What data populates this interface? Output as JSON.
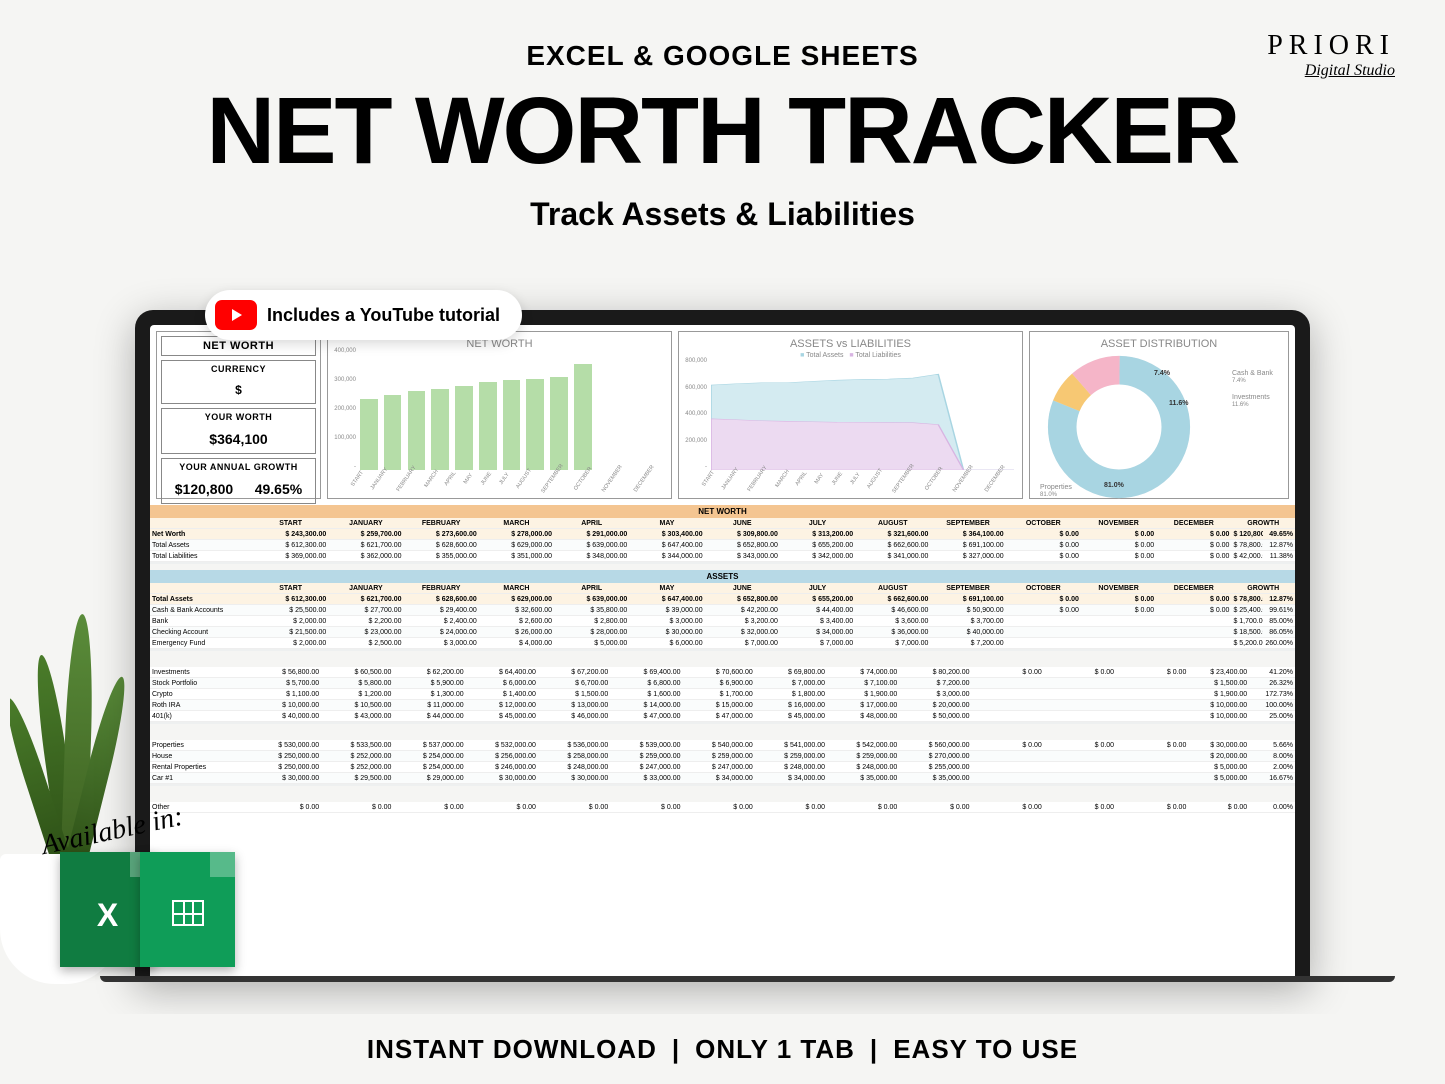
{
  "brand": {
    "name": "PRIORI",
    "sub": "Digital Studio"
  },
  "headings": {
    "sub1": "EXCEL & GOOGLE SHEETS",
    "main": "NET WORTH TRACKER",
    "sub2": "Track Assets & Liabilities"
  },
  "yt_pill": "Includes a YouTube tutorial",
  "avail_label": "Available in:",
  "bottom": [
    "INSTANT DOWNLOAD",
    "ONLY 1 TAB",
    "EASY TO USE"
  ],
  "months": [
    "START",
    "JANUARY",
    "FEBRUARY",
    "MARCH",
    "APRIL",
    "MAY",
    "JUNE",
    "JULY",
    "AUGUST",
    "SEPTEMBER",
    "OCTOBER",
    "NOVEMBER",
    "DECEMBER"
  ],
  "months_short": [
    "START",
    "JANUARY",
    "FEBRUARY",
    "MARCH",
    "APRIL",
    "MAY",
    "JUNE",
    "JULY",
    "AUGUST",
    "SEPTEMBER",
    "OCTOBER",
    "NOVEMBER",
    "DECEMBER"
  ],
  "kpi": {
    "panel_title": "NET WORTH",
    "currency_label": "CURRENCY",
    "currency": "$",
    "worth_label": "YOUR WORTH",
    "worth": "$364,100",
    "growth_label": "YOUR ANNUAL GROWTH",
    "growth_val": "$120,800",
    "growth_pct": "49.65%"
  },
  "chart_networth": {
    "title": "NET WORTH",
    "ylim": [
      0,
      400000
    ],
    "yticks": [
      "400,000",
      "300,000",
      "200,000",
      "100,000",
      "-"
    ],
    "bar_color": "#b5dda8",
    "values": [
      243300,
      259700,
      273600,
      278000,
      291000,
      303400,
      309800,
      313200,
      321600,
      364100,
      0,
      0,
      0
    ]
  },
  "chart_al": {
    "title": "ASSETS vs LIABILITIES",
    "legend": [
      "Total Assets",
      "Total Liabilities"
    ],
    "ylim": [
      0,
      800000
    ],
    "yticks": [
      "800,000",
      "600,000",
      "400,000",
      "200,000",
      "-"
    ],
    "assets_color": "#a8d5e2",
    "assets_fill": "#d4ebf1",
    "liab_color": "#d8b4e2",
    "liab_fill": "#ecdaf1",
    "assets": [
      612300,
      621700,
      628600,
      629000,
      639000,
      647400,
      652800,
      655200,
      662600,
      691100,
      0,
      0,
      0
    ],
    "liabilities": [
      369000,
      362000,
      355000,
      351000,
      348000,
      344000,
      343000,
      342000,
      341000,
      327000,
      0,
      0,
      0
    ]
  },
  "chart_donut": {
    "title": "ASSET DISTRIBUTION",
    "parts": [
      {
        "name": "Properties",
        "value": 81.0,
        "color": "#a8d5e2"
      },
      {
        "name": "Cash & Bank",
        "value": 7.4,
        "color": "#f7c873"
      },
      {
        "name": "Investments",
        "value": 11.6,
        "color": "#f5b5c8"
      }
    ]
  },
  "tables": {
    "networth": {
      "title": "NET WORTH",
      "rows": [
        {
          "label": "Net Worth",
          "vals": [
            "243,300.00",
            "259,700.00",
            "273,600.00",
            "278,000.00",
            "291,000.00",
            "303,400.00",
            "309,800.00",
            "313,200.00",
            "321,600.00",
            "364,100.00",
            "0.00",
            "0.00",
            "0.00"
          ],
          "growth": "120,800.00",
          "pct": "49.65%",
          "hl": true
        },
        {
          "label": "Total Assets",
          "vals": [
            "612,300.00",
            "621,700.00",
            "628,600.00",
            "629,000.00",
            "639,000.00",
            "647,400.00",
            "652,800.00",
            "655,200.00",
            "662,600.00",
            "691,100.00",
            "0.00",
            "0.00",
            "0.00"
          ],
          "growth": "78,800.00",
          "pct": "12.87%"
        },
        {
          "label": "Total Liabilities",
          "vals": [
            "369,000.00",
            "362,000.00",
            "355,000.00",
            "351,000.00",
            "348,000.00",
            "344,000.00",
            "343,000.00",
            "342,000.00",
            "341,000.00",
            "327,000.00",
            "0.00",
            "0.00",
            "0.00"
          ],
          "growth": "42,000.00",
          "pct": "11.38%"
        }
      ]
    },
    "assets": {
      "title": "ASSETS",
      "rows": [
        {
          "label": "Total Assets",
          "vals": [
            "612,300.00",
            "621,700.00",
            "628,600.00",
            "629,000.00",
            "639,000.00",
            "647,400.00",
            "652,800.00",
            "655,200.00",
            "662,600.00",
            "691,100.00",
            "0.00",
            "0.00",
            "0.00"
          ],
          "growth": "78,800.00",
          "pct": "12.87%",
          "hl": true
        },
        {
          "label": "Cash & Bank Accounts",
          "vals": [
            "25,500.00",
            "27,700.00",
            "29,400.00",
            "32,600.00",
            "35,800.00",
            "39,000.00",
            "42,200.00",
            "44,400.00",
            "46,600.00",
            "50,900.00",
            "0.00",
            "0.00",
            "0.00"
          ],
          "growth": "25,400.00",
          "pct": "99.61%"
        },
        {
          "label": "Bank",
          "vals": [
            "2,000.00",
            "2,200.00",
            "2,400.00",
            "2,600.00",
            "2,800.00",
            "3,000.00",
            "3,200.00",
            "3,400.00",
            "3,600.00",
            "3,700.00",
            "",
            "",
            ""
          ],
          "growth": "1,700.00",
          "pct": "85.00%"
        },
        {
          "label": "Checking Account",
          "vals": [
            "21,500.00",
            "23,000.00",
            "24,000.00",
            "26,000.00",
            "28,000.00",
            "30,000.00",
            "32,000.00",
            "34,000.00",
            "36,000.00",
            "40,000.00",
            "",
            "",
            ""
          ],
          "growth": "18,500.00",
          "pct": "86.05%"
        },
        {
          "label": "Emergency Fund",
          "vals": [
            "2,000.00",
            "2,500.00",
            "3,000.00",
            "4,000.00",
            "5,000.00",
            "6,000.00",
            "7,000.00",
            "7,000.00",
            "7,000.00",
            "7,200.00",
            "",
            "",
            ""
          ],
          "growth": "5,200.00",
          "pct": "260.00%"
        }
      ],
      "rows2": [
        {
          "label": "Investments",
          "vals": [
            "56,800.00",
            "60,500.00",
            "62,200.00",
            "64,400.00",
            "67,200.00",
            "69,400.00",
            "70,600.00",
            "69,800.00",
            "74,000.00",
            "80,200.00",
            "0.00",
            "0.00",
            "0.00"
          ],
          "growth": "23,400.00",
          "pct": "41.20%"
        },
        {
          "label": "Stock Portfolio",
          "vals": [
            "5,700.00",
            "5,800.00",
            "5,900.00",
            "6,000.00",
            "6,700.00",
            "6,800.00",
            "6,900.00",
            "7,000.00",
            "7,100.00",
            "7,200.00",
            "",
            "",
            ""
          ],
          "growth": "1,500.00",
          "pct": "26.32%"
        },
        {
          "label": "Crypto",
          "vals": [
            "1,100.00",
            "1,200.00",
            "1,300.00",
            "1,400.00",
            "1,500.00",
            "1,600.00",
            "1,700.00",
            "1,800.00",
            "1,900.00",
            "3,000.00",
            "",
            "",
            ""
          ],
          "growth": "1,900.00",
          "pct": "172.73%"
        },
        {
          "label": "Roth IRA",
          "vals": [
            "10,000.00",
            "10,500.00",
            "11,000.00",
            "12,000.00",
            "13,000.00",
            "14,000.00",
            "15,000.00",
            "16,000.00",
            "17,000.00",
            "20,000.00",
            "",
            "",
            ""
          ],
          "growth": "10,000.00",
          "pct": "100.00%"
        },
        {
          "label": "401(k)",
          "vals": [
            "40,000.00",
            "43,000.00",
            "44,000.00",
            "45,000.00",
            "46,000.00",
            "47,000.00",
            "47,000.00",
            "45,000.00",
            "48,000.00",
            "50,000.00",
            "",
            "",
            ""
          ],
          "growth": "10,000.00",
          "pct": "25.00%"
        }
      ],
      "rows3": [
        {
          "label": "Properties",
          "vals": [
            "530,000.00",
            "533,500.00",
            "537,000.00",
            "532,000.00",
            "536,000.00",
            "539,000.00",
            "540,000.00",
            "541,000.00",
            "542,000.00",
            "560,000.00",
            "0.00",
            "0.00",
            "0.00"
          ],
          "growth": "30,000.00",
          "pct": "5.66%"
        },
        {
          "label": "House",
          "vals": [
            "250,000.00",
            "252,000.00",
            "254,000.00",
            "256,000.00",
            "258,000.00",
            "259,000.00",
            "259,000.00",
            "259,000.00",
            "259,000.00",
            "270,000.00",
            "",
            "",
            ""
          ],
          "growth": "20,000.00",
          "pct": "8.00%"
        },
        {
          "label": "Rental Properties",
          "vals": [
            "250,000.00",
            "252,000.00",
            "254,000.00",
            "246,000.00",
            "248,000.00",
            "247,000.00",
            "247,000.00",
            "248,000.00",
            "248,000.00",
            "255,000.00",
            "",
            "",
            ""
          ],
          "growth": "5,000.00",
          "pct": "2.00%"
        },
        {
          "label": "Car #1",
          "vals": [
            "30,000.00",
            "29,500.00",
            "29,000.00",
            "30,000.00",
            "30,000.00",
            "33,000.00",
            "34,000.00",
            "34,000.00",
            "35,000.00",
            "35,000.00",
            "",
            "",
            ""
          ],
          "growth": "5,000.00",
          "pct": "16.67%"
        }
      ],
      "rows4": [
        {
          "label": "Other",
          "vals": [
            "0.00",
            "0.00",
            "0.00",
            "0.00",
            "0.00",
            "0.00",
            "0.00",
            "0.00",
            "0.00",
            "0.00",
            "0.00",
            "0.00",
            "0.00"
          ],
          "growth": "0.00",
          "pct": "0.00%"
        }
      ]
    }
  },
  "colors": {
    "bg": "#f5f5f3",
    "header_orange": "#f4c591",
    "header_blue": "#b7d9e6",
    "row_hl": "#fdf3e3"
  }
}
